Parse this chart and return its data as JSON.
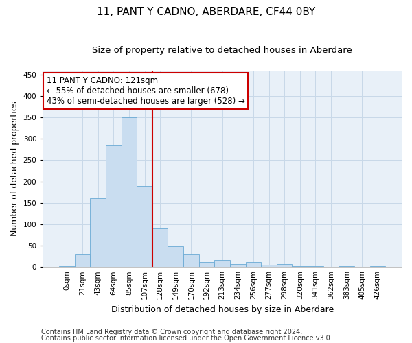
{
  "title": "11, PANT Y CADNO, ABERDARE, CF44 0BY",
  "subtitle": "Size of property relative to detached houses in Aberdare",
  "xlabel": "Distribution of detached houses by size in Aberdare",
  "ylabel": "Number of detached properties",
  "bar_labels": [
    "0sqm",
    "21sqm",
    "43sqm",
    "64sqm",
    "85sqm",
    "107sqm",
    "128sqm",
    "149sqm",
    "170sqm",
    "192sqm",
    "213sqm",
    "234sqm",
    "256sqm",
    "277sqm",
    "298sqm",
    "320sqm",
    "341sqm",
    "362sqm",
    "383sqm",
    "405sqm",
    "426sqm"
  ],
  "bar_heights": [
    2,
    30,
    160,
    285,
    350,
    190,
    90,
    48,
    31,
    11,
    17,
    6,
    11,
    5,
    6,
    2,
    2,
    0,
    2,
    0,
    2
  ],
  "bar_color": "#c9ddf0",
  "bar_edge_color": "#6aaad4",
  "vline_color": "#cc0000",
  "annotation_text": "11 PANT Y CADNO: 121sqm\n← 55% of detached houses are smaller (678)\n43% of semi-detached houses are larger (528) →",
  "annotation_box_color": "#ffffff",
  "annotation_box_edge": "#cc0000",
  "ylim": [
    0,
    460
  ],
  "yticks": [
    0,
    50,
    100,
    150,
    200,
    250,
    300,
    350,
    400,
    450
  ],
  "footer1": "Contains HM Land Registry data © Crown copyright and database right 2024.",
  "footer2": "Contains public sector information licensed under the Open Government Licence v3.0.",
  "bg_color": "#ffffff",
  "plot_bg_color": "#e8f0f8",
  "grid_color": "#c8d8e8",
  "title_fontsize": 11,
  "subtitle_fontsize": 9.5,
  "axis_label_fontsize": 9,
  "tick_fontsize": 7.5,
  "annotation_fontsize": 8.5,
  "footer_fontsize": 7
}
